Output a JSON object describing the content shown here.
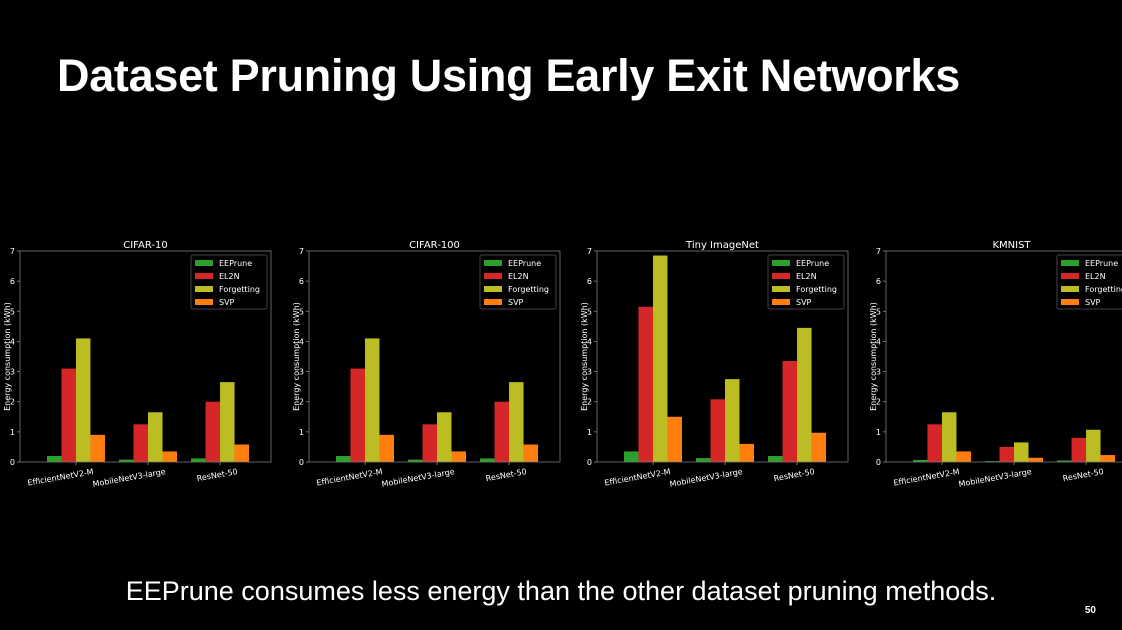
{
  "slide": {
    "title": "Dataset Pruning Using Early Exit Networks",
    "caption": "EEPrune consumes less energy than the other dataset pruning methods.",
    "page_number": "50"
  },
  "colors": {
    "background": "#000000",
    "EEPrune": "#2ca02c",
    "EL2N": "#d62728",
    "Forgetting": "#bcbd22",
    "SVP": "#ff7f0e"
  },
  "chart_data": [
    {
      "type": "bar",
      "title": "CIFAR-10",
      "ylabel": "Energy consumption (kWh)",
      "xlabel": "",
      "ylim": [
        0,
        7
      ],
      "yticks": [
        0,
        1,
        2,
        3,
        4,
        5,
        6,
        7
      ],
      "categories": [
        "EfficientNetV2-M",
        "MobileNetV3-large",
        "ResNet-50"
      ],
      "legend": "top-right",
      "series": [
        {
          "name": "EEPrune",
          "values": [
            0.2,
            0.08,
            0.12
          ]
        },
        {
          "name": "EL2N",
          "values": [
            3.1,
            1.25,
            2.0
          ]
        },
        {
          "name": "Forgetting",
          "values": [
            4.1,
            1.65,
            2.65
          ]
        },
        {
          "name": "SVP",
          "values": [
            0.9,
            0.35,
            0.58
          ]
        }
      ]
    },
    {
      "type": "bar",
      "title": "CIFAR-100",
      "ylabel": "Energy consumption (kWh)",
      "xlabel": "",
      "ylim": [
        0,
        7
      ],
      "yticks": [
        0,
        1,
        2,
        3,
        4,
        5,
        6,
        7
      ],
      "categories": [
        "EfficientNetV2-M",
        "MobileNetV3-large",
        "ResNet-50"
      ],
      "legend": "top-right",
      "series": [
        {
          "name": "EEPrune",
          "values": [
            0.2,
            0.08,
            0.12
          ]
        },
        {
          "name": "EL2N",
          "values": [
            3.1,
            1.25,
            2.0
          ]
        },
        {
          "name": "Forgetting",
          "values": [
            4.1,
            1.65,
            2.65
          ]
        },
        {
          "name": "SVP",
          "values": [
            0.9,
            0.35,
            0.58
          ]
        }
      ]
    },
    {
      "type": "bar",
      "title": "Tiny ImageNet",
      "ylabel": "Energy consumption (kWh)",
      "xlabel": "",
      "ylim": [
        0,
        7
      ],
      "yticks": [
        0,
        1,
        2,
        3,
        4,
        5,
        6,
        7
      ],
      "categories": [
        "EfficientNetV2-M",
        "MobileNetV3-large",
        "ResNet-50"
      ],
      "legend": "top-right",
      "series": [
        {
          "name": "EEPrune",
          "values": [
            0.35,
            0.13,
            0.2
          ]
        },
        {
          "name": "EL2N",
          "values": [
            5.15,
            2.08,
            3.35
          ]
        },
        {
          "name": "Forgetting",
          "values": [
            6.85,
            2.75,
            4.45
          ]
        },
        {
          "name": "SVP",
          "values": [
            1.5,
            0.6,
            0.97
          ]
        }
      ]
    },
    {
      "type": "bar",
      "title": "KMNIST",
      "ylabel": "Energy consumption (kWh)",
      "xlabel": "",
      "ylim": [
        0,
        7
      ],
      "yticks": [
        0,
        1,
        2,
        3,
        4,
        5,
        6,
        7
      ],
      "categories": [
        "EfficientNetV2-M",
        "MobileNetV3-large",
        "ResNet-50"
      ],
      "legend": "top-right",
      "series": [
        {
          "name": "EEPrune",
          "values": [
            0.07,
            0.03,
            0.05
          ]
        },
        {
          "name": "EL2N",
          "values": [
            1.25,
            0.5,
            0.8
          ]
        },
        {
          "name": "Forgetting",
          "values": [
            1.65,
            0.65,
            1.07
          ]
        },
        {
          "name": "SVP",
          "values": [
            0.35,
            0.14,
            0.23
          ]
        }
      ]
    }
  ]
}
